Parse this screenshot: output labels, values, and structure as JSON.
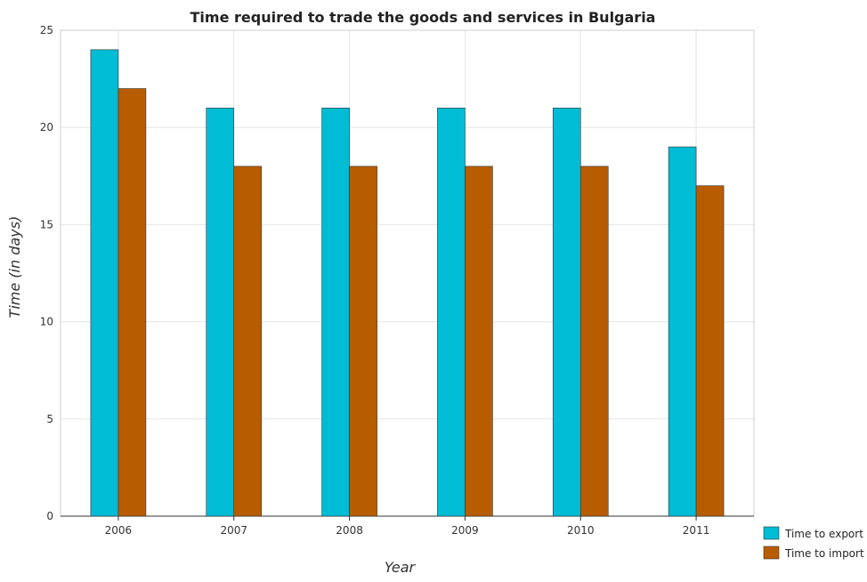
{
  "chart_data": {
    "type": "bar",
    "title": "Time required to trade the goods and services in Bulgaria",
    "xlabel": "Year",
    "ylabel": "Time (in days)",
    "categories": [
      "2006",
      "2007",
      "2008",
      "2009",
      "2010",
      "2011"
    ],
    "series": [
      {
        "name": "Time to export",
        "color": "#00bcd4",
        "values": [
          24,
          21,
          21,
          21,
          21,
          19
        ]
      },
      {
        "name": "Time to import",
        "color": "#b85c00",
        "values": [
          22,
          18,
          18,
          18,
          18,
          17
        ]
      }
    ],
    "ylim": [
      0,
      25
    ],
    "yticks": [
      0,
      5,
      10,
      15,
      20,
      25
    ],
    "grid": true,
    "legend_position": "bottom-right"
  }
}
